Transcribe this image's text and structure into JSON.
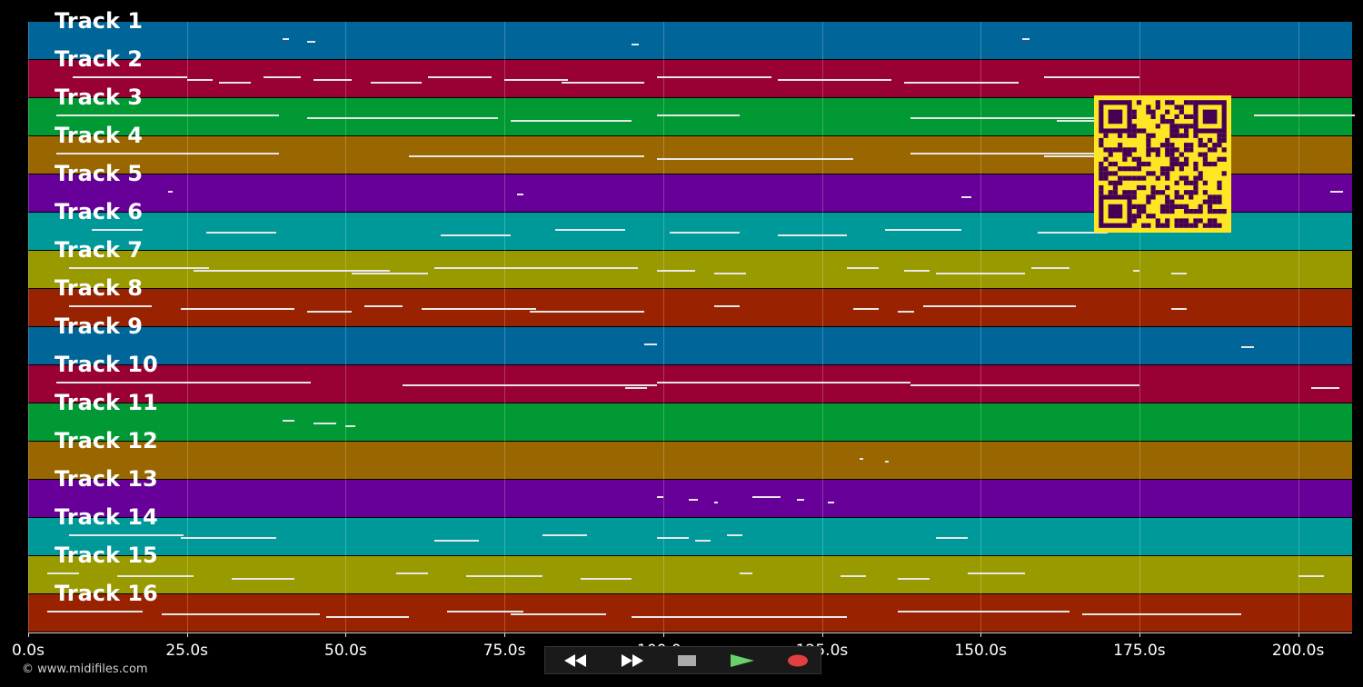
{
  "tracks": [
    {
      "label": "Track 1",
      "color": "#006699",
      "notes": [
        [
          40,
          1
        ],
        [
          44,
          1.2
        ],
        [
          95,
          1.2
        ],
        [
          156.5,
          1.2
        ]
      ]
    },
    {
      "label": "Track 2",
      "color": "#990033",
      "notes": [
        [
          7,
          18
        ],
        [
          25,
          4
        ],
        [
          30,
          5
        ],
        [
          37,
          6
        ],
        [
          45,
          6
        ],
        [
          54,
          8
        ],
        [
          63,
          10
        ],
        [
          75,
          10
        ],
        [
          84,
          13
        ],
        [
          99,
          18
        ],
        [
          118,
          18
        ],
        [
          138,
          18
        ],
        [
          160,
          15
        ]
      ]
    },
    {
      "label": "Track 3",
      "color": "#009933",
      "notes": [
        [
          4.5,
          35
        ],
        [
          44,
          30
        ],
        [
          76,
          19
        ],
        [
          99,
          13
        ],
        [
          139,
          30
        ],
        [
          162,
          7
        ],
        [
          193,
          16
        ]
      ]
    },
    {
      "label": "Track 4",
      "color": "#996600",
      "notes": [
        [
          4.5,
          35
        ],
        [
          60,
          37
        ],
        [
          99,
          31
        ],
        [
          139,
          30
        ],
        [
          160,
          10
        ]
      ]
    },
    {
      "label": "Track 5",
      "color": "#660099",
      "notes": [
        [
          22,
          0.8
        ],
        [
          77,
          1
        ],
        [
          147,
          1.6
        ],
        [
          205,
          2
        ]
      ]
    },
    {
      "label": "Track 6",
      "color": "#009999",
      "notes": [
        [
          10,
          8
        ],
        [
          28,
          11
        ],
        [
          65,
          11
        ],
        [
          83,
          11
        ],
        [
          101,
          11
        ],
        [
          118,
          11
        ],
        [
          135,
          12
        ],
        [
          159,
          11
        ]
      ]
    },
    {
      "label": "Track 7",
      "color": "#999900",
      "notes": [
        [
          6.5,
          22
        ],
        [
          26,
          31
        ],
        [
          51,
          12
        ],
        [
          64,
          32
        ],
        [
          99,
          6
        ],
        [
          108,
          5
        ],
        [
          129,
          5
        ],
        [
          138,
          4
        ],
        [
          143,
          14
        ],
        [
          158,
          6
        ],
        [
          174,
          1
        ],
        [
          180,
          2.5
        ]
      ]
    },
    {
      "label": "Track 8",
      "color": "#992200",
      "notes": [
        [
          6.5,
          13
        ],
        [
          24,
          18
        ],
        [
          44,
          7
        ],
        [
          53,
          6
        ],
        [
          62,
          18
        ],
        [
          79,
          18
        ],
        [
          108,
          4
        ],
        [
          130,
          4
        ],
        [
          137,
          2.5
        ],
        [
          141,
          24
        ],
        [
          180,
          2.5
        ]
      ]
    },
    {
      "label": "Track 9",
      "color": "#006699",
      "notes": [
        [
          97,
          2
        ],
        [
          191,
          2
        ]
      ]
    },
    {
      "label": "Track 10",
      "color": "#990033",
      "notes": [
        [
          4.5,
          40
        ],
        [
          59,
          40
        ],
        [
          94,
          3.5
        ],
        [
          99,
          40
        ],
        [
          139,
          36
        ],
        [
          202,
          4.5
        ]
      ]
    },
    {
      "label": "Track 11",
      "color": "#009933",
      "notes": [
        [
          40,
          2
        ],
        [
          45,
          3.5
        ],
        [
          50,
          1.5
        ]
      ]
    },
    {
      "label": "Track 12",
      "color": "#996600",
      "notes": [
        [
          131,
          0.5
        ],
        [
          135,
          0.5
        ]
      ]
    },
    {
      "label": "Track 13",
      "color": "#660099",
      "notes": [
        [
          99,
          1
        ],
        [
          104,
          1.5
        ],
        [
          108,
          0.6
        ],
        [
          114,
          4.5
        ],
        [
          121,
          1.2
        ],
        [
          126,
          1
        ]
      ]
    },
    {
      "label": "Track 14",
      "color": "#009999",
      "notes": [
        [
          6.5,
          18
        ],
        [
          24,
          15
        ],
        [
          64,
          7
        ],
        [
          81,
          7
        ],
        [
          99,
          5
        ],
        [
          105,
          2.5
        ],
        [
          110,
          2.5
        ],
        [
          143,
          5
        ]
      ]
    },
    {
      "label": "Track 15",
      "color": "#999900",
      "notes": [
        [
          3,
          5
        ],
        [
          14,
          12
        ],
        [
          32,
          10
        ],
        [
          58,
          5
        ],
        [
          69,
          12
        ],
        [
          87,
          8
        ],
        [
          112,
          2
        ],
        [
          128,
          4
        ],
        [
          137,
          5
        ],
        [
          148,
          9
        ],
        [
          200,
          4
        ]
      ]
    },
    {
      "label": "Track 16",
      "color": "#992200",
      "notes": [
        [
          3,
          15
        ],
        [
          21,
          25
        ],
        [
          47,
          13
        ],
        [
          66,
          12
        ],
        [
          76,
          15
        ],
        [
          95,
          34
        ],
        [
          137,
          27
        ],
        [
          166,
          25
        ]
      ]
    }
  ],
  "axis": {
    "ticks": [
      "0.0s",
      "25.0s",
      "50.0s",
      "75.0s",
      "100.0s",
      "125.0s",
      "150.0s",
      "175.0s",
      "200.0s"
    ],
    "tick_values": [
      0,
      25,
      50,
      75,
      100,
      125,
      150,
      175,
      200
    ],
    "max_seconds": 208.5
  },
  "copyright": "© www.midifiles.com",
  "controls": [
    {
      "name": "rewind-button",
      "icon": "rewind-icon",
      "color": "#2a2a2a",
      "glyph": "◀◀"
    },
    {
      "name": "fast-forward-button",
      "icon": "fast-forward-icon",
      "color": "#2a2a2a",
      "glyph": "▶▶"
    },
    {
      "name": "stop-button",
      "icon": "stop-icon",
      "color": "#3a3a3a",
      "glyph": "■"
    },
    {
      "name": "play-button",
      "icon": "play-icon",
      "color": "#1f6b2c",
      "glyph": "▶"
    },
    {
      "name": "record-button",
      "icon": "record-icon",
      "color": "#5a1a1a",
      "glyph": "●"
    }
  ],
  "qr_code": {
    "icon": "qr-code-icon",
    "color": "#fde725",
    "module_color": "#440154"
  }
}
